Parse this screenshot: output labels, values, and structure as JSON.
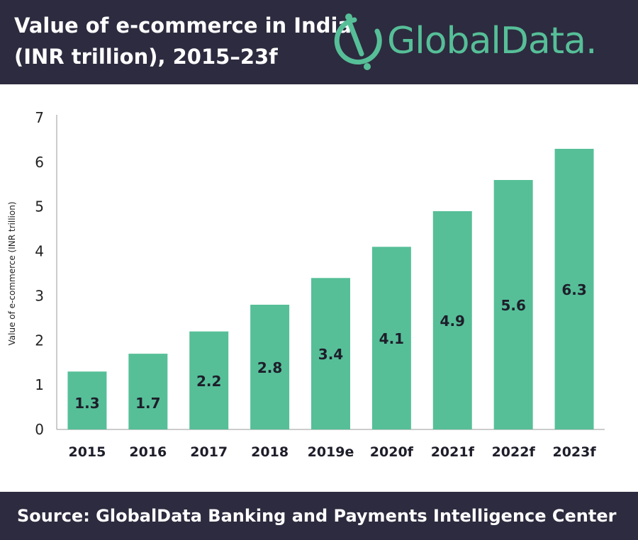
{
  "header": {
    "title_line1": "Value of e-commerce in India",
    "title_line2": "(INR trillion), 2015–23f",
    "logo_text": "GlobalData."
  },
  "colors": {
    "header_bg": "#2d2b3f",
    "bar": "#56bf98",
    "logo": "#56bf98"
  },
  "chart_data": {
    "type": "bar",
    "categories": [
      "2015",
      "2016",
      "2017",
      "2018",
      "2019e",
      "2020f",
      "2021f",
      "2022f",
      "2023f"
    ],
    "values": [
      1.3,
      1.7,
      2.2,
      2.8,
      3.4,
      4.1,
      4.9,
      5.6,
      6.3
    ],
    "data_labels": [
      "1.3",
      "1.7",
      "2.2",
      "2.8",
      "3.4",
      "4.1",
      "4.9",
      "5.6",
      "6.3"
    ],
    "title": "",
    "xlabel": "",
    "ylabel": "Value of e-commerce (INR trillion)",
    "ylim": [
      0,
      7
    ],
    "yticks": [
      0,
      1,
      2,
      3,
      4,
      5,
      6,
      7
    ],
    "grid": false,
    "legend": "none"
  },
  "footer": {
    "source": "Source:  GlobalData Banking and Payments Intelligence Center"
  }
}
